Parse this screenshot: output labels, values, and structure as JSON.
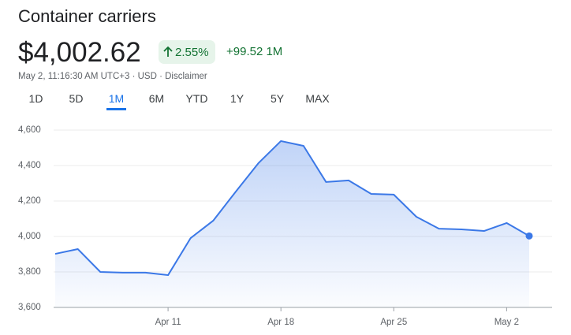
{
  "header": {
    "title": "Container carriers",
    "price": "$4,002.62",
    "change_percent": "2.55%",
    "change": "+99.52 1M",
    "meta": "May 2, 11:16:30 AM UTC+3 · USD · Disclaimer"
  },
  "tabs": [
    "1D",
    "5D",
    "1M",
    "6M",
    "YTD",
    "1Y",
    "5Y",
    "MAX"
  ],
  "active_tab": 2,
  "chart_data": {
    "type": "line",
    "color": "#3b78e7",
    "categories": [
      null,
      null,
      null,
      null,
      null,
      "Apr 11",
      null,
      null,
      null,
      null,
      "Apr 18",
      null,
      null,
      null,
      null,
      "Apr 25",
      null,
      null,
      null,
      null,
      "May 2",
      null
    ],
    "values": [
      3902,
      3929,
      3800,
      3796,
      3796,
      3782,
      3991,
      4089,
      4253,
      4413,
      4538,
      4511,
      4307,
      4316,
      4240,
      4236,
      4111,
      4044,
      4040,
      4031,
      4076,
      4003
    ],
    "ylim": [
      3600,
      4600
    ],
    "yticks": [
      {
        "value": 3600,
        "label": "3,600"
      },
      {
        "value": 3800,
        "label": "3,800"
      },
      {
        "value": 4000,
        "label": "4,000"
      },
      {
        "value": 4200,
        "label": "4,200"
      },
      {
        "value": 4400,
        "label": "4,400"
      },
      {
        "value": 4600,
        "label": "4,600"
      }
    ],
    "grid": true
  }
}
